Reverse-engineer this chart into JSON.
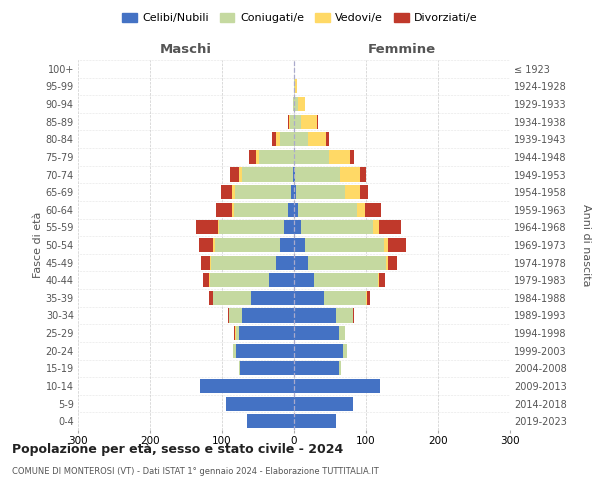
{
  "age_groups": [
    "0-4",
    "5-9",
    "10-14",
    "15-19",
    "20-24",
    "25-29",
    "30-34",
    "35-39",
    "40-44",
    "45-49",
    "50-54",
    "55-59",
    "60-64",
    "65-69",
    "70-74",
    "75-79",
    "80-84",
    "85-89",
    "90-94",
    "95-99",
    "100+"
  ],
  "birth_years": [
    "2019-2023",
    "2014-2018",
    "2009-2013",
    "2004-2008",
    "1999-2003",
    "1994-1998",
    "1989-1993",
    "1984-1988",
    "1979-1983",
    "1974-1978",
    "1969-1973",
    "1964-1968",
    "1959-1963",
    "1954-1958",
    "1949-1953",
    "1944-1948",
    "1939-1943",
    "1934-1938",
    "1929-1933",
    "1924-1928",
    "≤ 1923"
  ],
  "male_celibi": [
    65,
    95,
    130,
    75,
    80,
    76,
    72,
    60,
    35,
    25,
    20,
    14,
    8,
    4,
    2,
    0,
    0,
    0,
    0,
    0,
    0
  ],
  "male_coniugati": [
    0,
    0,
    0,
    2,
    5,
    5,
    18,
    52,
    82,
    90,
    90,
    90,
    75,
    78,
    70,
    48,
    20,
    5,
    2,
    0,
    0
  ],
  "male_vedovi": [
    0,
    0,
    0,
    0,
    0,
    1,
    0,
    1,
    1,
    2,
    2,
    2,
    3,
    4,
    5,
    5,
    5,
    2,
    0,
    0,
    0
  ],
  "male_divorziati": [
    0,
    0,
    0,
    0,
    0,
    1,
    2,
    5,
    8,
    12,
    20,
    30,
    22,
    15,
    12,
    10,
    5,
    2,
    0,
    0,
    0
  ],
  "female_nubili": [
    58,
    82,
    120,
    63,
    68,
    63,
    58,
    42,
    28,
    20,
    15,
    10,
    5,
    3,
    2,
    0,
    0,
    0,
    0,
    0,
    0
  ],
  "female_coniugate": [
    0,
    0,
    0,
    2,
    5,
    8,
    24,
    58,
    88,
    108,
    110,
    100,
    82,
    68,
    62,
    48,
    20,
    10,
    5,
    2,
    0
  ],
  "female_vedove": [
    0,
    0,
    0,
    0,
    0,
    0,
    0,
    1,
    2,
    3,
    5,
    8,
    12,
    20,
    28,
    30,
    25,
    22,
    10,
    2,
    0
  ],
  "female_divorziate": [
    0,
    0,
    0,
    0,
    0,
    0,
    2,
    5,
    8,
    12,
    25,
    30,
    22,
    12,
    8,
    5,
    3,
    2,
    0,
    0,
    0
  ],
  "color_celibi": "#4472C4",
  "color_coniugati": "#C5D9A0",
  "color_vedovi": "#FFD966",
  "color_divorziati": "#C0392B",
  "title1": "Popolazione per età, sesso e stato civile - 2024",
  "title2": "COMUNE DI MONTEROSI (VT) - Dati ISTAT 1° gennaio 2024 - Elaborazione TUTTITALIA.IT",
  "label_maschi": "Maschi",
  "label_femmine": "Femmine",
  "ylabel_left": "Fasce di età",
  "ylabel_right": "Anni di nascita",
  "legend_labels": [
    "Celibi/Nubili",
    "Coniugati/e",
    "Vedovi/e",
    "Divorziati/e"
  ],
  "xlim": 300,
  "bg_color": "#ffffff",
  "grid_color": "#cccccc"
}
